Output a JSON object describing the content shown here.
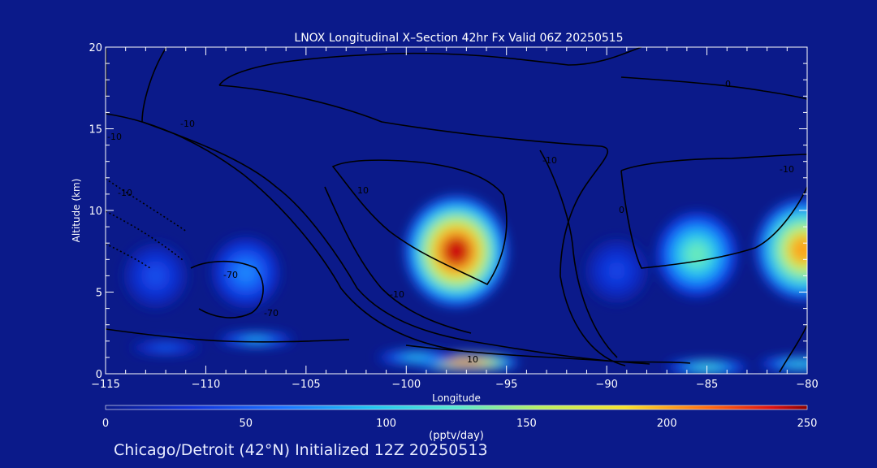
{
  "chart_data": {
    "type": "heatmap",
    "title": "LNOX Longitudinal X–Section 42hr  Fx Valid 06Z 20250515",
    "xlabel": "Longitude",
    "ylabel": "Altitude (km)",
    "xlim": [
      -115,
      -80
    ],
    "ylim": [
      0,
      20
    ],
    "x_ticks": [
      -115,
      -110,
      -105,
      -100,
      -95,
      -90,
      -85,
      -80
    ],
    "x_tick_labels": [
      "−115",
      "−110",
      "−105",
      "−100",
      "−95",
      "−90",
      "−85",
      "−80"
    ],
    "y_ticks": [
      0,
      5,
      10,
      15,
      20
    ],
    "colorbar": {
      "min": 0,
      "max": 250,
      "ticks": [
        0,
        50,
        100,
        150,
        200,
        250
      ],
      "label": "(pptv/day)"
    },
    "cells": [
      {
        "lon": -112.5,
        "alt": 6.0,
        "value": 45
      },
      {
        "lon": -108.0,
        "alt": 6.2,
        "value": 70
      },
      {
        "lon": -112.0,
        "alt": 1.6,
        "value": 55
      },
      {
        "lon": -107.5,
        "alt": 2.1,
        "value": 90
      },
      {
        "lon": -97.5,
        "alt": 7.5,
        "value": 240
      },
      {
        "lon": -97.0,
        "alt": 0.7,
        "value": 235
      },
      {
        "lon": -99.5,
        "alt": 1.0,
        "value": 100
      },
      {
        "lon": -89.5,
        "alt": 6.3,
        "value": 40
      },
      {
        "lon": -85.5,
        "alt": 7.3,
        "value": 130
      },
      {
        "lon": -85.0,
        "alt": 0.4,
        "value": 120
      },
      {
        "lon": -80.2,
        "alt": 7.6,
        "value": 200
      },
      {
        "lon": -80.4,
        "alt": 0.6,
        "value": 110
      }
    ],
    "contour_labels": [
      "0",
      "-10",
      "-10",
      "-70",
      "-70",
      "-10",
      "-10",
      "-10",
      "10",
      "-10",
      "0",
      "10"
    ]
  },
  "footer": "Chicago/Detroit (42°N) Initialized 12Z 20250513",
  "colors": {
    "background": "#0b1a8a",
    "frame": "#ffffff",
    "contour": "#000000"
  }
}
